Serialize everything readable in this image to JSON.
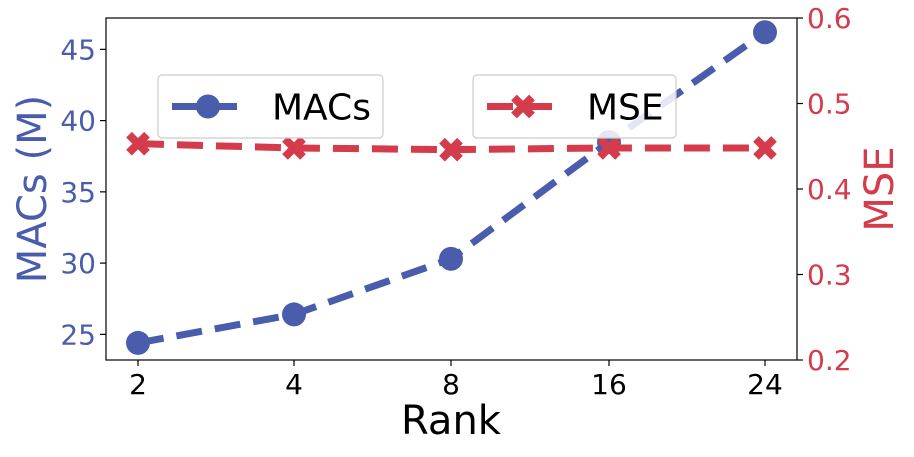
{
  "chart_data": {
    "type": "line",
    "xlabel": "Rank",
    "categories": [
      "2",
      "4",
      "8",
      "16",
      "24"
    ],
    "y_left": {
      "label": "MACs (M)",
      "lim": [
        23.2,
        47.2
      ],
      "ticks": [
        25,
        30,
        35,
        40,
        45
      ],
      "color": "#4a5dad"
    },
    "y_right": {
      "label": "MSE",
      "lim": [
        0.2,
        0.6
      ],
      "ticks": [
        "0.2",
        "0.3",
        "0.4",
        "0.5",
        "0.6"
      ],
      "color": "#d43c4b"
    },
    "series": [
      {
        "name": "MACs",
        "axis": "left",
        "marker": "circle",
        "color": "#4a5dad",
        "values": [
          24.4,
          26.4,
          30.3,
          38.5,
          46.2
        ]
      },
      {
        "name": "MSE",
        "axis": "right",
        "marker": "x",
        "color": "#d43c4b",
        "values": [
          0.453,
          0.448,
          0.446,
          0.448,
          0.448
        ]
      }
    ],
    "legend": [
      "MACs",
      "MSE"
    ],
    "grid": false,
    "legend_placement": "upper"
  }
}
